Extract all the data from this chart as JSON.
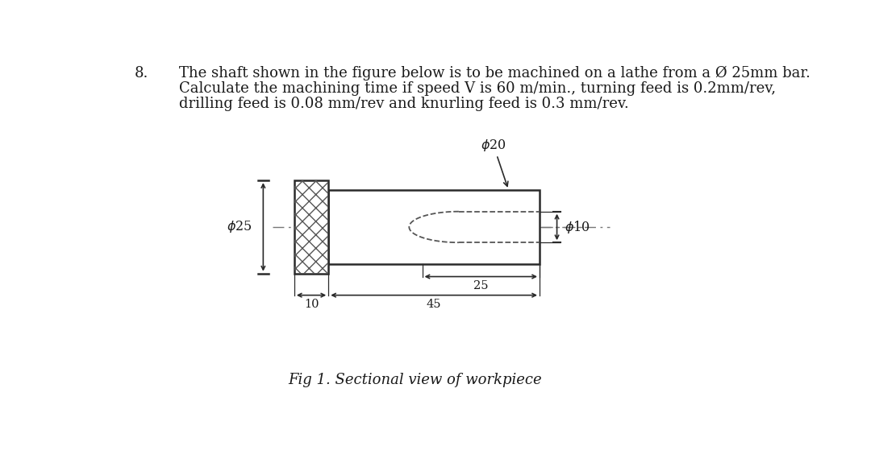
{
  "title_num": "8.",
  "text_line1": "The shaft shown in the figure below is to be machined on a lathe from a Ø 25mm bar.",
  "text_line2": "Calculate the machining time if speed V is 60 m/min., turning feed is 0.2mm/rev,",
  "text_line3": "drilling feed is 0.08 mm/rev and knurling feed is 0.3 mm/rev.",
  "fig_caption": "Fig 1. Sectional view of workpiece",
  "bg_color": "#ffffff",
  "line_color": "#2a2a2a",
  "dim_color": "#2a2a2a",
  "hatch_color": "#555555",
  "dash_color": "#555555",
  "text_color": "#1a1a1a",
  "font_size_text": 13.0,
  "font_size_dim": 10.5,
  "font_size_caption": 13.0
}
